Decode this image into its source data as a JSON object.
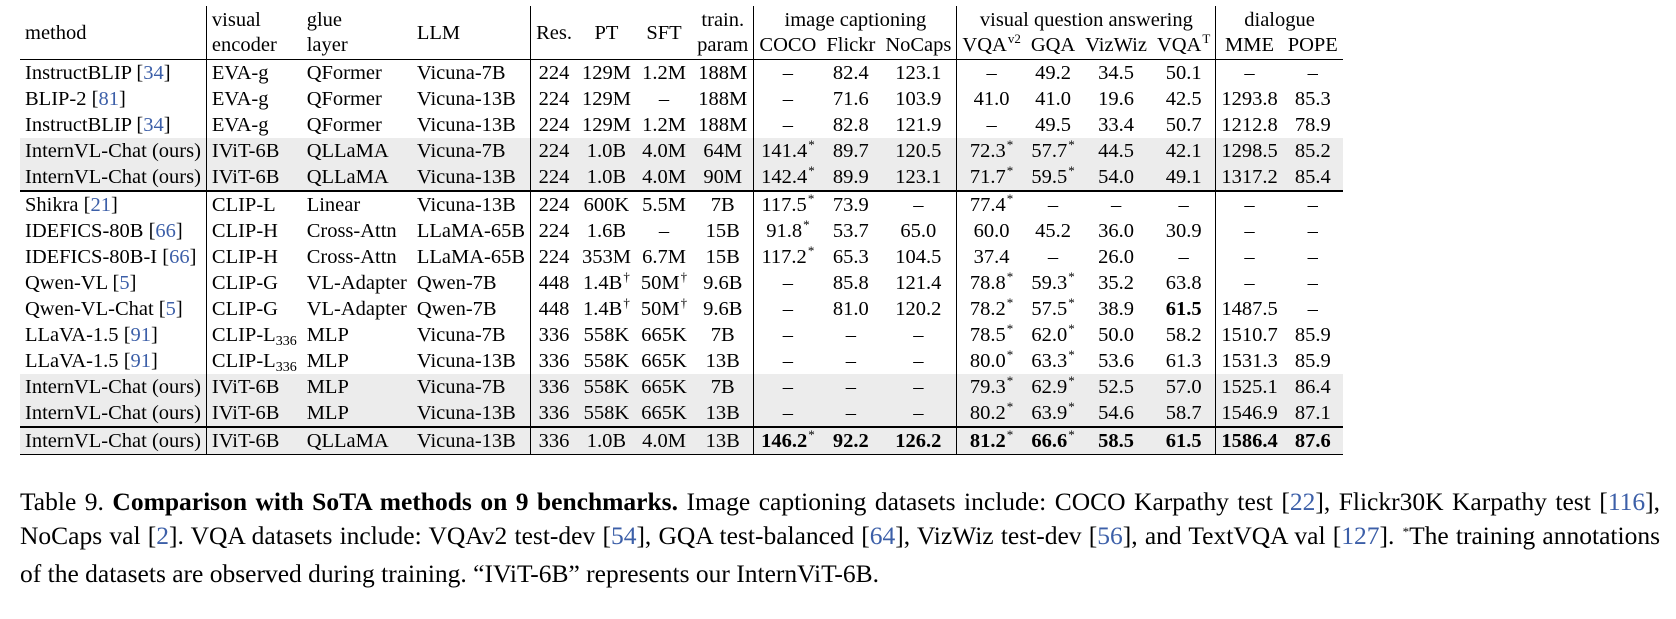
{
  "header": {
    "method": "method",
    "visual_encoder": [
      "visual",
      "encoder"
    ],
    "glue_layer": [
      "glue",
      "layer"
    ],
    "llm": "LLM",
    "res": "Res.",
    "pt": "PT",
    "sft": "SFT",
    "train_param": [
      "train.",
      "param"
    ],
    "group_captioning": "image captioning",
    "group_vqa": "visual question answering",
    "group_dialogue": "dialogue",
    "coco": "COCO",
    "flickr": "Flickr",
    "nocaps": "NoCaps",
    "vqav2": "VQA",
    "vqav2_sup": "v2",
    "gqa": "GQA",
    "vizwiz": "VizWiz",
    "vqat": "VQA",
    "vqat_sup": "T",
    "mme": "MME",
    "pope": "POPE"
  },
  "rows": [
    {
      "method": "InstructBLIP",
      "ref": "34",
      "enc": "EVA-g",
      "glue": "QFormer",
      "llm": "Vicuna-7B",
      "res": "224",
      "pt": "129M",
      "sft": "1.2M",
      "param": "188M",
      "coco": "–",
      "flickr": "82.4",
      "nocaps": "123.1",
      "vqav2": "–",
      "gqa": "49.2",
      "vizwiz": "34.5",
      "vqat": "50.1",
      "mme": "–",
      "pope": "–"
    },
    {
      "method": "BLIP-2",
      "ref": "81",
      "enc": "EVA-g",
      "glue": "QFormer",
      "llm": "Vicuna-13B",
      "res": "224",
      "pt": "129M",
      "sft": "–",
      "param": "188M",
      "coco": "–",
      "flickr": "71.6",
      "nocaps": "103.9",
      "vqav2": "41.0",
      "gqa": "41.0",
      "vizwiz": "19.6",
      "vqat": "42.5",
      "mme": "1293.8",
      "pope": "85.3"
    },
    {
      "method": "InstructBLIP",
      "ref": "34",
      "enc": "EVA-g",
      "glue": "QFormer",
      "llm": "Vicuna-13B",
      "res": "224",
      "pt": "129M",
      "sft": "1.2M",
      "param": "188M",
      "coco": "–",
      "flickr": "82.8",
      "nocaps": "121.9",
      "vqav2": "–",
      "gqa": "49.5",
      "vizwiz": "33.4",
      "vqat": "50.7",
      "mme": "1212.8",
      "pope": "78.9"
    },
    {
      "method": "InternVL-Chat (ours)",
      "ref": "",
      "shade": true,
      "enc": "IViT-6B",
      "glue": "QLLaMA",
      "llm": "Vicuna-7B",
      "res": "224",
      "pt": "1.0B",
      "sft": "4.0M",
      "param": "64M",
      "coco": "141.4",
      "coco_s": "*",
      "flickr": "89.7",
      "nocaps": "120.5",
      "vqav2": "72.3",
      "vqav2_s": "*",
      "gqa": "57.7",
      "gqa_s": "*",
      "vizwiz": "44.5",
      "vqat": "42.1",
      "mme": "1298.5",
      "pope": "85.2"
    },
    {
      "method": "InternVL-Chat (ours)",
      "ref": "",
      "shade": true,
      "enc": "IViT-6B",
      "glue": "QLLaMA",
      "llm": "Vicuna-13B",
      "res": "224",
      "pt": "1.0B",
      "sft": "4.0M",
      "param": "90M",
      "coco": "142.4",
      "coco_s": "*",
      "flickr": "89.9",
      "nocaps": "123.1",
      "vqav2": "71.7",
      "vqav2_s": "*",
      "gqa": "59.5",
      "gqa_s": "*",
      "vizwiz": "54.0",
      "vqat": "49.1",
      "mme": "1317.2",
      "pope": "85.4"
    },
    {
      "method": "Shikra",
      "ref": "21",
      "sep": true,
      "enc": "CLIP-L",
      "glue": "Linear",
      "llm": "Vicuna-13B",
      "res": "224",
      "pt": "600K",
      "sft": "5.5M",
      "param": "7B",
      "coco": "117.5",
      "coco_s": "*",
      "flickr": "73.9",
      "nocaps": "–",
      "vqav2": "77.4",
      "vqav2_s": "*",
      "gqa": "–",
      "vizwiz": "–",
      "vqat": "–",
      "mme": "–",
      "pope": "–"
    },
    {
      "method": "IDEFICS-80B",
      "ref": "66",
      "enc": "CLIP-H",
      "glue": "Cross-Attn",
      "llm": "LLaMA-65B",
      "res": "224",
      "pt": "1.6B",
      "sft": "–",
      "param": "15B",
      "coco": "91.8",
      "coco_s": "*",
      "flickr": "53.7",
      "nocaps": "65.0",
      "vqav2": "60.0",
      "gqa": "45.2",
      "vizwiz": "36.0",
      "vqat": "30.9",
      "mme": "–",
      "pope": "–"
    },
    {
      "method": "IDEFICS-80B-I",
      "ref": "66",
      "enc": "CLIP-H",
      "glue": "Cross-Attn",
      "llm": "LLaMA-65B",
      "res": "224",
      "pt": "353M",
      "sft": "6.7M",
      "param": "15B",
      "coco": "117.2",
      "coco_s": "*",
      "flickr": "65.3",
      "nocaps": "104.5",
      "vqav2": "37.4",
      "gqa": "–",
      "vizwiz": "26.0",
      "vqat": "–",
      "mme": "–",
      "pope": "–"
    },
    {
      "method": "Qwen-VL",
      "ref": "5",
      "enc": "CLIP-G",
      "glue": "VL-Adapter",
      "llm": "Qwen-7B",
      "res": "448",
      "pt": "1.4B",
      "pt_s": "†",
      "sft": "50M",
      "sft_s": "†",
      "param": "9.6B",
      "coco": "–",
      "flickr": "85.8",
      "nocaps": "121.4",
      "vqav2": "78.8",
      "vqav2_s": "*",
      "gqa": "59.3",
      "gqa_s": "*",
      "vizwiz": "35.2",
      "vqat": "63.8",
      "mme": "–",
      "pope": "–"
    },
    {
      "method": "Qwen-VL-Chat",
      "ref": "5",
      "enc": "CLIP-G",
      "glue": "VL-Adapter",
      "llm": "Qwen-7B",
      "res": "448",
      "pt": "1.4B",
      "pt_s": "†",
      "sft": "50M",
      "sft_s": "†",
      "param": "9.6B",
      "coco": "–",
      "flickr": "81.0",
      "nocaps": "120.2",
      "vqav2": "78.2",
      "vqav2_s": "*",
      "gqa": "57.5",
      "gqa_s": "*",
      "vizwiz": "38.9",
      "vqat": "61.5",
      "vqat_b": true,
      "mme": "1487.5",
      "pope": "–"
    },
    {
      "method": "LLaVA-1.5",
      "ref": "91",
      "enc": "CLIP-L",
      "enc_sub": "336",
      "glue": "MLP",
      "llm": "Vicuna-7B",
      "res": "336",
      "pt": "558K",
      "sft": "665K",
      "param": "7B",
      "coco": "–",
      "flickr": "–",
      "nocaps": "–",
      "vqav2": "78.5",
      "vqav2_s": "*",
      "gqa": "62.0",
      "gqa_s": "*",
      "vizwiz": "50.0",
      "vqat": "58.2",
      "mme": "1510.7",
      "pope": "85.9"
    },
    {
      "method": "LLaVA-1.5",
      "ref": "91",
      "enc": "CLIP-L",
      "enc_sub": "336",
      "glue": "MLP",
      "llm": "Vicuna-13B",
      "res": "336",
      "pt": "558K",
      "sft": "665K",
      "param": "13B",
      "coco": "–",
      "flickr": "–",
      "nocaps": "–",
      "vqav2": "80.0",
      "vqav2_s": "*",
      "gqa": "63.3",
      "gqa_s": "*",
      "vizwiz": "53.6",
      "vqat": "61.3",
      "mme": "1531.3",
      "pope": "85.9"
    },
    {
      "method": "InternVL-Chat (ours)",
      "ref": "",
      "shade": true,
      "enc": "IViT-6B",
      "glue": "MLP",
      "llm": "Vicuna-7B",
      "res": "336",
      "pt": "558K",
      "sft": "665K",
      "param": "7B",
      "coco": "–",
      "flickr": "–",
      "nocaps": "–",
      "vqav2": "79.3",
      "vqav2_s": "*",
      "gqa": "62.9",
      "gqa_s": "*",
      "vizwiz": "52.5",
      "vqat": "57.0",
      "mme": "1525.1",
      "pope": "86.4"
    },
    {
      "method": "InternVL-Chat (ours)",
      "ref": "",
      "shade": true,
      "enc": "IViT-6B",
      "glue": "MLP",
      "llm": "Vicuna-13B",
      "res": "336",
      "pt": "558K",
      "sft": "665K",
      "param": "13B",
      "coco": "–",
      "flickr": "–",
      "nocaps": "–",
      "vqav2": "80.2",
      "vqav2_s": "*",
      "gqa": "63.9",
      "gqa_s": "*",
      "vizwiz": "54.6",
      "vqat": "58.7",
      "mme": "1546.9",
      "pope": "87.1"
    },
    {
      "method": "InternVL-Chat (ours)",
      "ref": "",
      "shade": true,
      "last": true,
      "bold": true,
      "enc": "IViT-6B",
      "glue": "QLLaMA",
      "llm": "Vicuna-13B",
      "res": "336",
      "pt": "1.0B",
      "sft": "4.0M",
      "param": "13B",
      "coco": "146.2",
      "coco_s": "*",
      "flickr": "92.2",
      "nocaps": "126.2",
      "vqav2": "81.2",
      "vqav2_s": "*",
      "gqa": "66.6",
      "gqa_s": "*",
      "vizwiz": "58.5",
      "vqat": "61.5",
      "mme": "1586.4",
      "pope": "87.6"
    }
  ],
  "caption": {
    "label": "Table 9. ",
    "bold": "Comparison with SoTA methods on 9 benchmarks.",
    "t1": " Image captioning datasets include: COCO Karpathy test [",
    "r1": "22",
    "t2": "], Flickr30K Karpathy test [",
    "r2": "116",
    "t3": "], NoCaps val [",
    "r3": "2",
    "t4": "]. VQA datasets include: VQAv2 test-dev [",
    "r4": "54",
    "t5": "], GQA test-balanced [",
    "r5": "64",
    "t6": "], VizWiz test-dev [",
    "r6": "56",
    "t7": "], and TextVQA val [",
    "r7": "127",
    "t8": "]. ",
    "star": "*",
    "t9": "The training annotations of the datasets are observed during training. “IViT-6B” represents our InternViT-6B."
  }
}
